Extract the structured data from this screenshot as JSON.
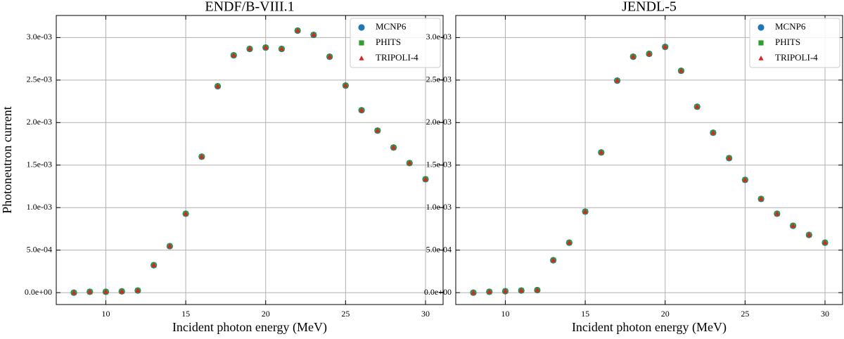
{
  "chart_data": [
    {
      "type": "scatter",
      "title": "ENDF/B-VIII.1",
      "xlabel": "Incident photon energy (MeV)",
      "ylabel": "Photoneutron current",
      "x": [
        8,
        9,
        10,
        11,
        12,
        13,
        14,
        15,
        16,
        17,
        18,
        19,
        20,
        21,
        22,
        23,
        24,
        25,
        26,
        27,
        28,
        29,
        30
      ],
      "series": [
        {
          "name": "MCNP6",
          "color": "#1f77b4",
          "marker": "circle",
          "values": [
            0,
            1e-05,
            1e-05,
            1.5e-05,
            2.5e-05,
            0.000323,
            0.000547,
            0.000928,
            0.001599,
            0.002428,
            0.002792,
            0.002867,
            0.002883,
            0.002867,
            0.003082,
            0.003032,
            0.002775,
            0.002436,
            0.002146,
            0.001906,
            0.001707,
            0.001524,
            0.001334
          ]
        },
        {
          "name": "PHITS",
          "color": "#2ca02c",
          "marker": "square",
          "values": [
            0,
            1e-05,
            1e-05,
            1.5e-05,
            2.5e-05,
            0.000323,
            0.000547,
            0.000928,
            0.001599,
            0.002428,
            0.002792,
            0.002867,
            0.002883,
            0.002867,
            0.003082,
            0.003032,
            0.002775,
            0.002436,
            0.002146,
            0.001906,
            0.001707,
            0.001524,
            0.001334
          ]
        },
        {
          "name": "TRIPOLI-4",
          "color": "#d62728",
          "marker": "triangle",
          "values": [
            0,
            1e-05,
            1e-05,
            1.5e-05,
            2.5e-05,
            0.000323,
            0.000547,
            0.000928,
            0.001599,
            0.002428,
            0.002792,
            0.002867,
            0.002883,
            0.002867,
            0.003082,
            0.003032,
            0.002775,
            0.002436,
            0.002146,
            0.001906,
            0.001707,
            0.001524,
            0.001334
          ]
        }
      ],
      "xlim": [
        6.9,
        31.1
      ],
      "xticks": [
        10,
        15,
        20,
        25,
        30
      ],
      "ylim": [
        -0.00014,
        0.00326
      ],
      "yticks": [
        {
          "value": 0,
          "label": "0.0e+00"
        },
        {
          "value": 0.0005,
          "label": "5.0e-04"
        },
        {
          "value": 0.001,
          "label": "1.0e-03"
        },
        {
          "value": 0.0015,
          "label": "1.5e-03"
        },
        {
          "value": 0.002,
          "label": "2.0e-03"
        },
        {
          "value": 0.0025,
          "label": "2.5e-03"
        },
        {
          "value": 0.003,
          "label": "3.0e-03"
        }
      ],
      "grid": true,
      "legend": "upper right"
    },
    {
      "type": "scatter",
      "title": "JENDL-5",
      "xlabel": "Incident photon energy (MeV)",
      "x": [
        8,
        9,
        10,
        11,
        12,
        13,
        14,
        15,
        16,
        17,
        18,
        19,
        20,
        21,
        22,
        23,
        24,
        25,
        26,
        27,
        28,
        29,
        30
      ],
      "series": [
        {
          "name": "MCNP6",
          "color": "#1f77b4",
          "marker": "circle",
          "values": [
            0,
            1e-05,
            1.7e-05,
            2.5e-05,
            3e-05,
            0.000381,
            0.000588,
            0.000953,
            0.001649,
            0.002494,
            0.002775,
            0.002809,
            0.002891,
            0.00261,
            0.002187,
            0.001881,
            0.001582,
            0.001326,
            0.001102,
            0.000928,
            0.000787,
            0.000679,
            0.000588
          ]
        },
        {
          "name": "PHITS",
          "color": "#2ca02c",
          "marker": "square",
          "values": [
            0,
            1e-05,
            1.7e-05,
            2.5e-05,
            3e-05,
            0.000381,
            0.000588,
            0.000953,
            0.001649,
            0.002494,
            0.002775,
            0.002809,
            0.002891,
            0.00261,
            0.002187,
            0.001881,
            0.001582,
            0.001326,
            0.001102,
            0.000928,
            0.000787,
            0.000679,
            0.000588
          ]
        },
        {
          "name": "TRIPOLI-4",
          "color": "#d62728",
          "marker": "triangle",
          "values": [
            0,
            1e-05,
            1.7e-05,
            2.5e-05,
            3e-05,
            0.000381,
            0.000588,
            0.000953,
            0.001649,
            0.002494,
            0.002775,
            0.002809,
            0.002891,
            0.00261,
            0.002187,
            0.001881,
            0.001582,
            0.001326,
            0.001102,
            0.000928,
            0.000787,
            0.000679,
            0.000588
          ]
        }
      ],
      "xlim": [
        6.9,
        31.1
      ],
      "xticks": [
        10,
        15,
        20,
        25,
        30
      ],
      "ylim": [
        -0.00014,
        0.00326
      ],
      "yticks": [
        {
          "value": 0,
          "label": "0.0e+00"
        },
        {
          "value": 0.0005,
          "label": "5.0e-04"
        },
        {
          "value": 0.001,
          "label": "1.0e-03"
        },
        {
          "value": 0.0015,
          "label": "1.5e-03"
        },
        {
          "value": 0.002,
          "label": "2.0e-03"
        },
        {
          "value": 0.0025,
          "label": "2.5e-03"
        },
        {
          "value": 0.003,
          "label": "3.0e-03"
        }
      ],
      "grid": true,
      "legend": "upper right"
    }
  ]
}
